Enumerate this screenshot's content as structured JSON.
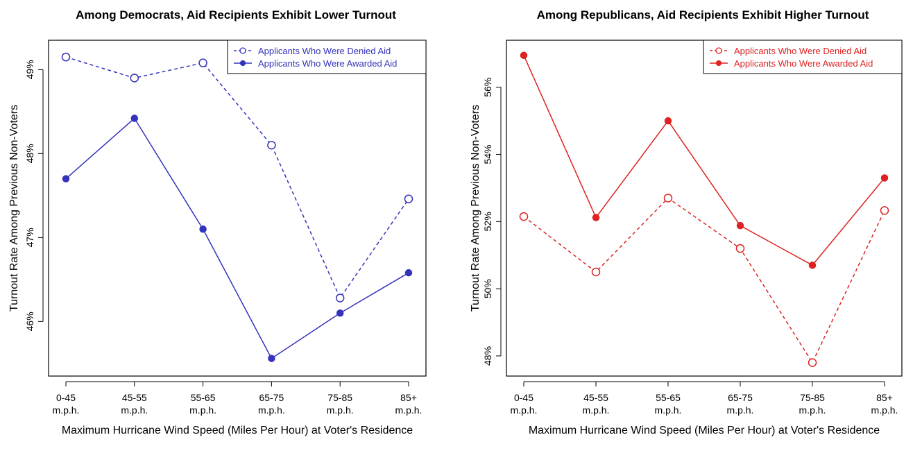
{
  "chart_data": [
    {
      "type": "line",
      "title": "Among Democrats, Aid Recipients Exhibit Lower Turnout",
      "xlabel": "Maximum Hurricane Wind Speed (Miles Per Hour) at Voter's Residence",
      "ylabel": "Turnout Rate Among Previous Non-Voters",
      "categories": [
        [
          "0-45",
          "m.p.h."
        ],
        [
          "45-55",
          "m.p.h."
        ],
        [
          "55-65",
          "m.p.h."
        ],
        [
          "65-75",
          "m.p.h."
        ],
        [
          "75-85",
          "m.p.h."
        ],
        [
          "85+",
          "m.p.h."
        ]
      ],
      "yticks": [
        46,
        47,
        48,
        49
      ],
      "ytick_labels": [
        "46%",
        "47%",
        "48%",
        "49%"
      ],
      "ylim": [
        45.35,
        49.35
      ],
      "color": "#3333bb",
      "legend_position": "top-right",
      "grid": false,
      "series": [
        {
          "name": "Applicants Who Were Denied Aid",
          "style": "dashed",
          "marker": "open-circle",
          "values": [
            49.15,
            48.9,
            49.08,
            48.1,
            46.28,
            47.46
          ]
        },
        {
          "name": "Applicants Who Were Awarded Aid",
          "style": "solid",
          "marker": "filled-circle",
          "values": [
            47.7,
            48.42,
            47.1,
            45.56,
            46.1,
            46.58
          ]
        }
      ]
    },
    {
      "type": "line",
      "title": "Among Republicans, Aid Recipients Exhibit Higher Turnout",
      "xlabel": "Maximum Hurricane Wind Speed (Miles Per Hour) at Voter's Residence",
      "ylabel": "Turnout Rate Among Previous Non-Voters",
      "categories": [
        [
          "0-45",
          "m.p.h."
        ],
        [
          "45-55",
          "m.p.h."
        ],
        [
          "55-65",
          "m.p.h."
        ],
        [
          "65-75",
          "m.p.h."
        ],
        [
          "75-85",
          "m.p.h."
        ],
        [
          "85+",
          "m.p.h."
        ]
      ],
      "yticks": [
        48,
        50,
        52,
        54,
        56
      ],
      "ytick_labels": [
        "48%",
        "50%",
        "52%",
        "54%",
        "56%"
      ],
      "ylim": [
        47.4,
        57.4
      ],
      "color": "#dd2222",
      "legend_position": "top-right",
      "grid": false,
      "series": [
        {
          "name": "Applicants Who Were Denied Aid",
          "style": "dashed",
          "marker": "open-circle",
          "values": [
            52.15,
            50.5,
            52.7,
            51.2,
            47.8,
            52.33
          ]
        },
        {
          "name": "Applicants Who Were Awarded Aid",
          "style": "solid",
          "marker": "filled-circle",
          "values": [
            56.95,
            52.12,
            55.0,
            51.88,
            50.7,
            53.3
          ]
        }
      ]
    }
  ]
}
